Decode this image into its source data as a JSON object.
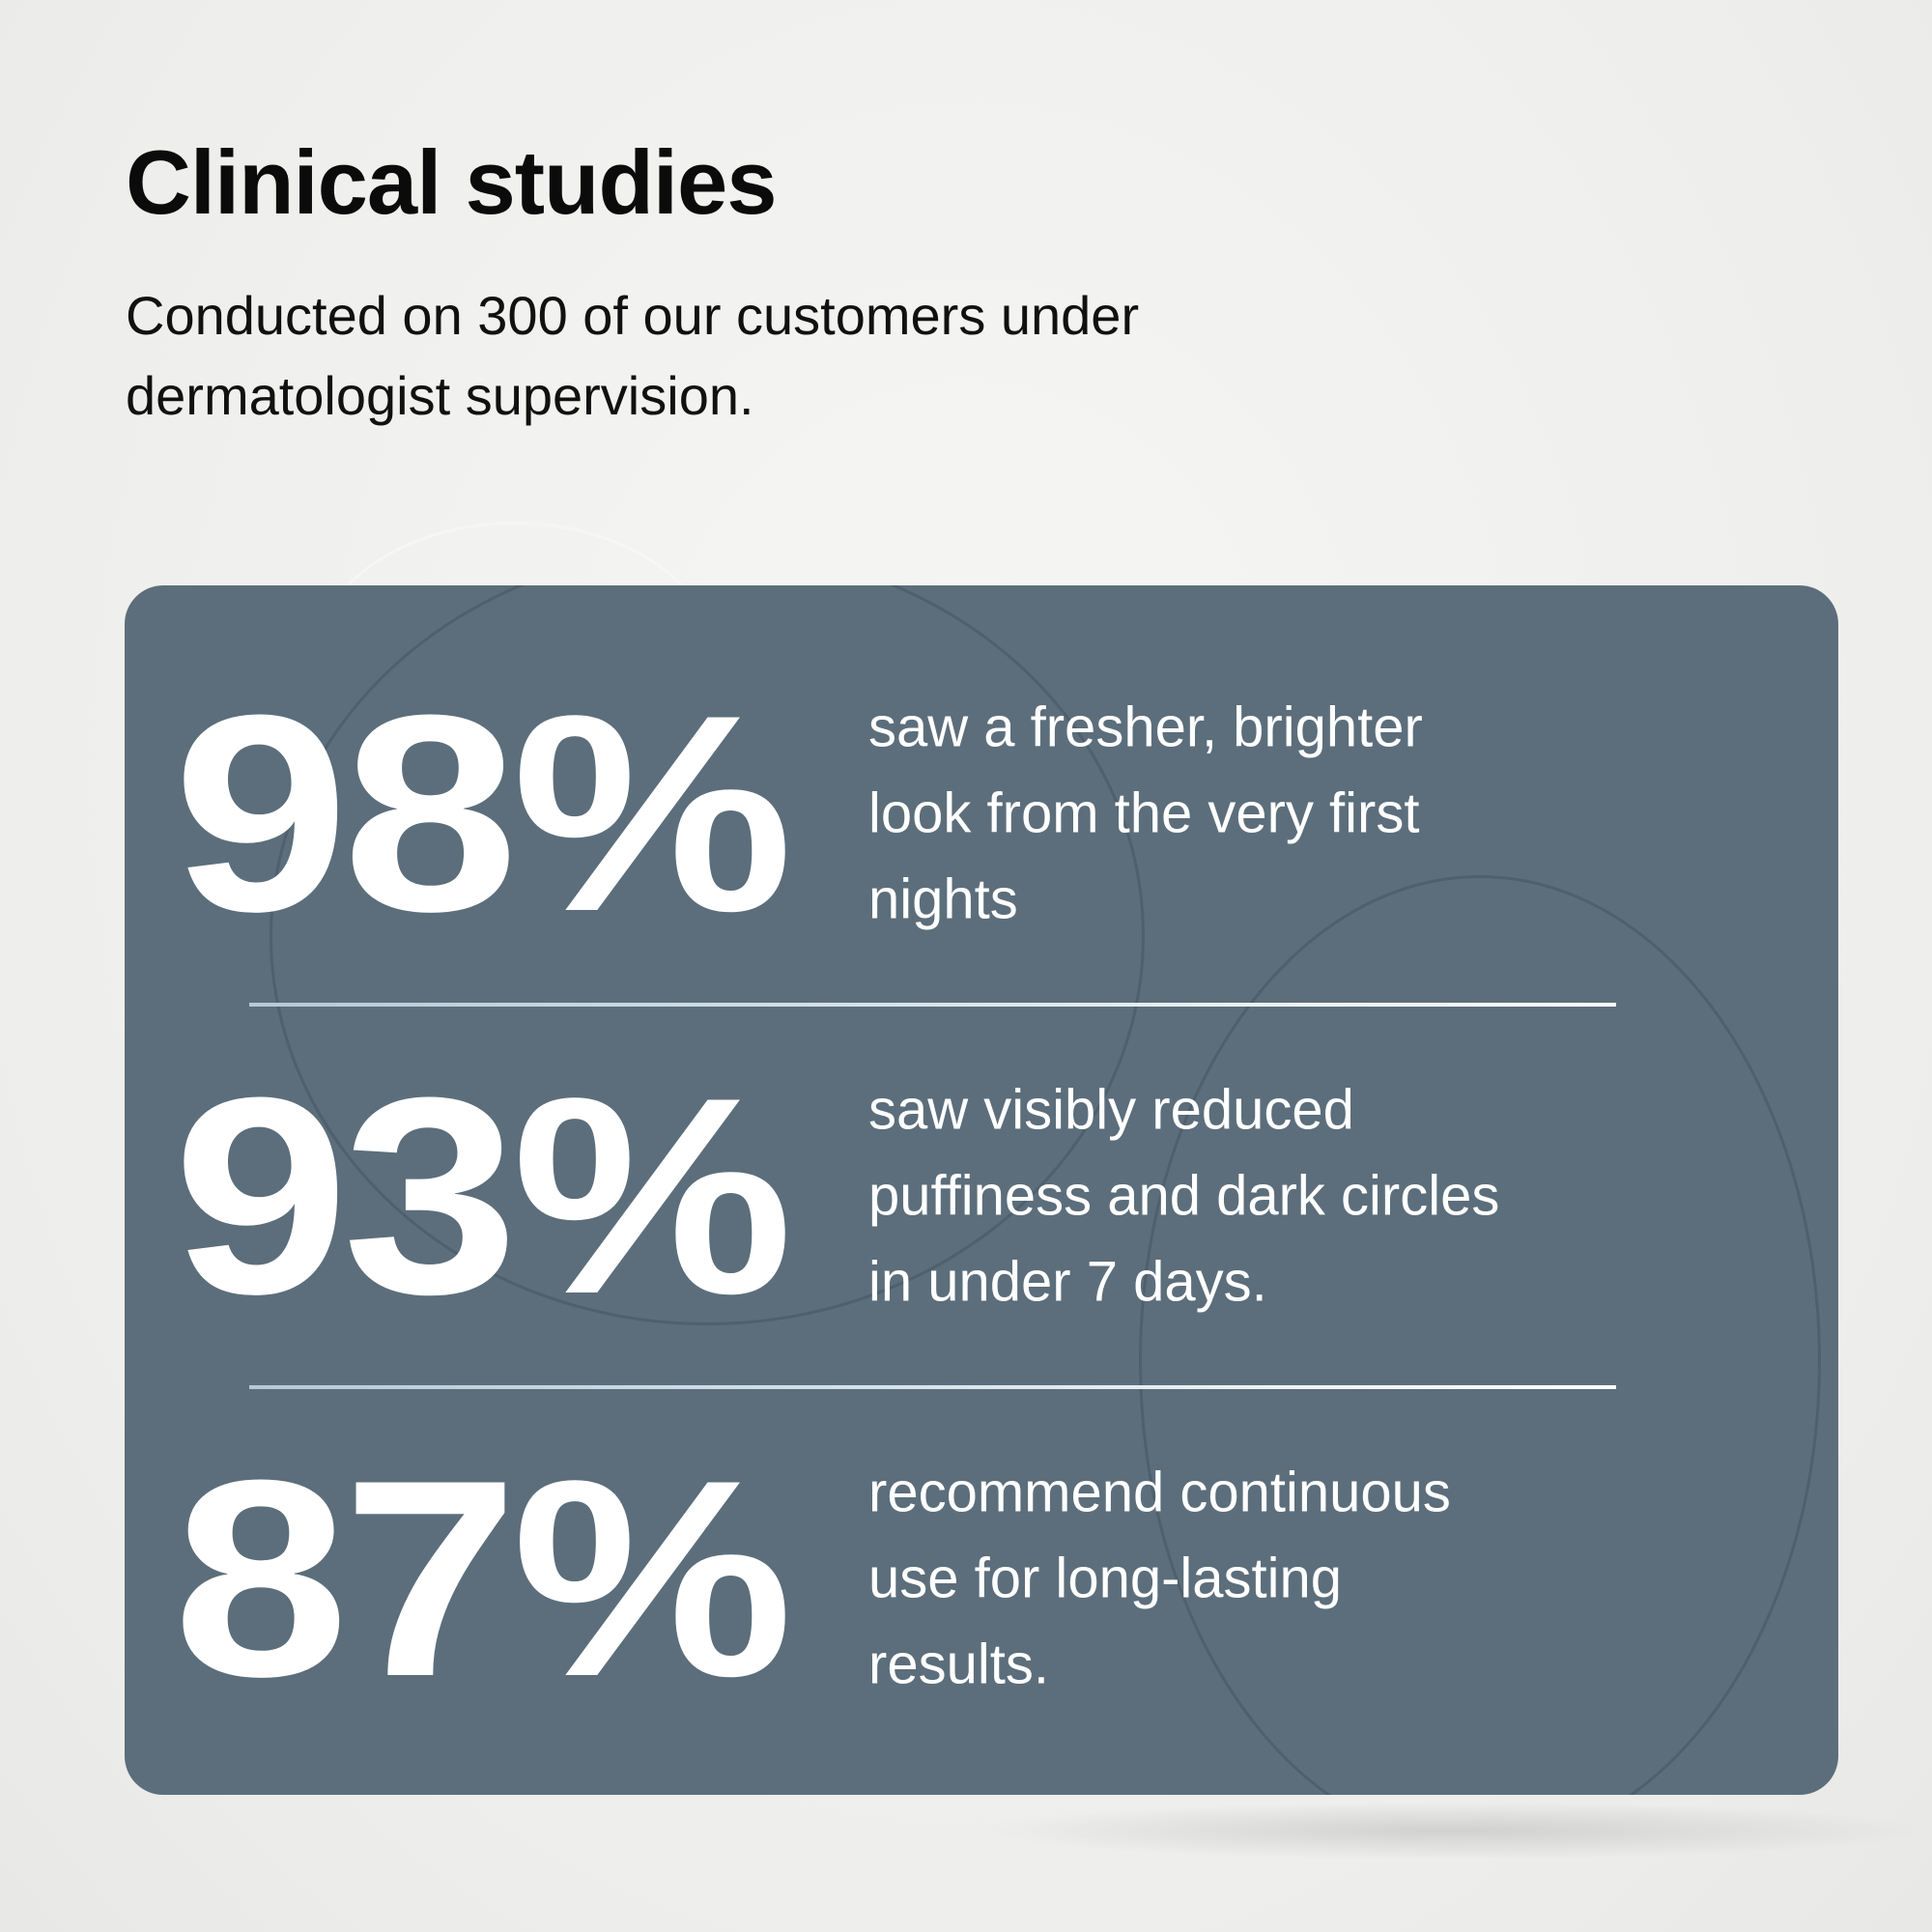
{
  "header": {
    "title": "Clinical studies",
    "subtitle_lines": [
      "Conducted on 300 of our customers under",
      "dermatologist supervision."
    ]
  },
  "colors": {
    "card": "#5c6e7b",
    "divider_start": "#b4cad6",
    "divider_end": "#ffffff",
    "text_on_card": "#ffffff"
  },
  "stats": [
    {
      "value": "98%",
      "lines": [
        "saw a fresher, brighter",
        "look from the very first",
        "nights"
      ]
    },
    {
      "value": "93%",
      "lines": [
        "saw visibly reduced",
        "puffiness and dark circles",
        "in under 7 days."
      ]
    },
    {
      "value": "87%",
      "lines": [
        "recommend continuous",
        "use for long-lasting",
        "results."
      ]
    }
  ]
}
